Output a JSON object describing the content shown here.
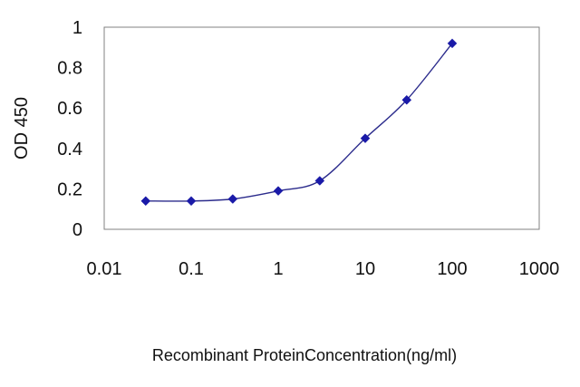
{
  "chart_data": {
    "type": "line",
    "title": "",
    "xlabel": "Recombinant ProteinConcentration(ng/ml)",
    "ylabel": "OD 450",
    "x_scale": "log",
    "xlim": [
      0.01,
      1000
    ],
    "ylim": [
      0,
      1
    ],
    "x_ticks": [
      "0.01",
      "0.1",
      "1",
      "10",
      "100",
      "1000"
    ],
    "y_ticks": [
      "0",
      "0.2",
      "0.4",
      "0.6",
      "0.8",
      "1"
    ],
    "grid": "horizontal",
    "legend": "none",
    "series": [
      {
        "x": [
          0.03,
          0.1,
          0.3,
          1,
          3,
          10,
          30,
          100
        ],
        "y": [
          0.14,
          0.14,
          0.15,
          0.19,
          0.24,
          0.45,
          0.64,
          0.92
        ]
      }
    ],
    "colors": {
      "line": "#2b2b8c",
      "marker": "#1a1aa8",
      "grid": "#000000",
      "axis": "#808080",
      "plot_background": "#ffffff"
    }
  }
}
